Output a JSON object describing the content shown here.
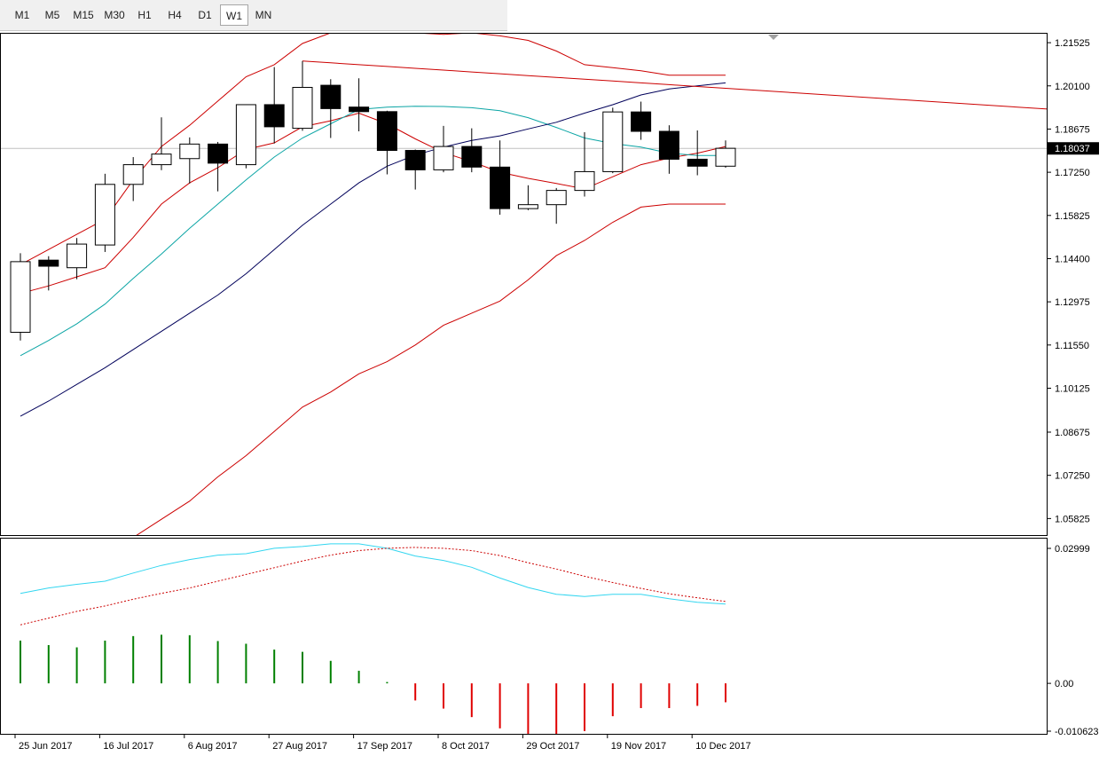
{
  "toolbar": {
    "timeframes": [
      "M1",
      "M5",
      "M15",
      "M30",
      "H1",
      "H4",
      "D1",
      "W1",
      "MN"
    ],
    "active": "W1"
  },
  "chart_data": [
    {
      "type": "candlestick",
      "symbol_timeframe": "W1",
      "x_tick_labels": [
        "25 Jun 2017",
        "16 Jul 2017",
        "6 Aug 2017",
        "27 Aug 2017",
        "17 Sep 2017",
        "8 Oct 2017",
        "29 Oct 2017",
        "19 Nov 2017",
        "10 Dec 2017"
      ],
      "y_tick_labels": [
        "1.21525",
        "1.20100",
        "1.18675",
        "1.17250",
        "1.15825",
        "1.14400",
        "1.12975",
        "1.11550",
        "1.10125",
        "1.08675",
        "1.07250",
        "1.05825"
      ],
      "ylim": [
        1.0525,
        1.2185
      ],
      "current_price": "1.18037",
      "candles": [
        {
          "open": 1.1197,
          "high": 1.1458,
          "low": 1.117,
          "close": 1.143
        },
        {
          "open": 1.1435,
          "high": 1.1448,
          "low": 1.1335,
          "close": 1.1415
        },
        {
          "open": 1.141,
          "high": 1.1508,
          "low": 1.1372,
          "close": 1.1488
        },
        {
          "open": 1.1485,
          "high": 1.172,
          "low": 1.1462,
          "close": 1.1685
        },
        {
          "open": 1.1685,
          "high": 1.1775,
          "low": 1.163,
          "close": 1.175
        },
        {
          "open": 1.175,
          "high": 1.1906,
          "low": 1.1732,
          "close": 1.1785
        },
        {
          "open": 1.177,
          "high": 1.184,
          "low": 1.1688,
          "close": 1.1818
        },
        {
          "open": 1.1818,
          "high": 1.1825,
          "low": 1.1662,
          "close": 1.1755
        },
        {
          "open": 1.175,
          "high": 1.1942,
          "low": 1.1738,
          "close": 1.1948
        },
        {
          "open": 1.1948,
          "high": 1.2072,
          "low": 1.182,
          "close": 1.1875
        },
        {
          "open": 1.187,
          "high": 1.2092,
          "low": 1.1862,
          "close": 1.2005
        },
        {
          "open": 1.2012,
          "high": 1.2032,
          "low": 1.1838,
          "close": 1.1935
        },
        {
          "open": 1.194,
          "high": 1.2035,
          "low": 1.186,
          "close": 1.1925
        },
        {
          "open": 1.1925,
          "high": 1.1928,
          "low": 1.1718,
          "close": 1.1797
        },
        {
          "open": 1.1797,
          "high": 1.18,
          "low": 1.1668,
          "close": 1.1733
        },
        {
          "open": 1.1733,
          "high": 1.1878,
          "low": 1.1725,
          "close": 1.181
        },
        {
          "open": 1.181,
          "high": 1.187,
          "low": 1.1725,
          "close": 1.1742
        },
        {
          "open": 1.1742,
          "high": 1.183,
          "low": 1.1585,
          "close": 1.1605
        },
        {
          "open": 1.1605,
          "high": 1.1682,
          "low": 1.16,
          "close": 1.1618
        },
        {
          "open": 1.1618,
          "high": 1.1673,
          "low": 1.1555,
          "close": 1.1665
        },
        {
          "open": 1.1665,
          "high": 1.1857,
          "low": 1.1645,
          "close": 1.1727
        },
        {
          "open": 1.1727,
          "high": 1.1938,
          "low": 1.1722,
          "close": 1.1924
        },
        {
          "open": 1.1924,
          "high": 1.1958,
          "low": 1.1832,
          "close": 1.186
        },
        {
          "open": 1.186,
          "high": 1.188,
          "low": 1.172,
          "close": 1.1768
        },
        {
          "open": 1.1768,
          "high": 1.1863,
          "low": 1.1715,
          "close": 1.1745
        },
        {
          "open": 1.1745,
          "high": 1.183,
          "low": 1.174,
          "close": 1.1804
        }
      ],
      "overlays": [
        {
          "color": "#cc0000",
          "values": [
            1.1325,
            1.135,
            1.138,
            1.141,
            1.151,
            1.162,
            1.169,
            1.174,
            1.18,
            1.1822,
            1.1875,
            1.1895,
            1.192,
            1.1885,
            1.1835,
            1.179,
            1.176,
            1.1725,
            1.1705,
            1.1688,
            1.167,
            1.171,
            1.175,
            1.1772,
            1.1788,
            1.181
          ]
        },
        {
          "color": "#cc0000",
          "values": [
            1.142,
            1.147,
            1.152,
            1.157,
            1.17,
            1.181,
            1.188,
            1.196,
            1.204,
            1.208,
            1.215,
            1.2185,
            1.22,
            1.2195,
            1.2185,
            1.218,
            1.2185,
            1.2175,
            1.216,
            1.2125,
            1.208,
            1.207,
            1.206,
            1.2045,
            1.2045,
            1.2045
          ]
        },
        {
          "color": "#cc0000",
          "values": [
            1.028,
            1.033,
            1.038,
            1.045,
            1.052,
            1.058,
            1.064,
            1.072,
            1.079,
            1.087,
            1.095,
            1.1,
            1.106,
            1.11,
            1.1155,
            1.122,
            1.126,
            1.13,
            1.137,
            1.145,
            1.15,
            1.156,
            1.161,
            1.162,
            1.162,
            1.162
          ]
        },
        {
          "color": "#0ba5a5",
          "values": [
            1.112,
            1.117,
            1.1225,
            1.129,
            1.1375,
            1.1455,
            1.154,
            1.162,
            1.17,
            1.1775,
            1.1838,
            1.1885,
            1.1932,
            1.194,
            1.1943,
            1.1942,
            1.1938,
            1.1928,
            1.1905,
            1.1873,
            1.1838,
            1.182,
            1.1808,
            1.1788,
            1.178,
            1.178
          ]
        },
        {
          "color": "#00005a",
          "values": [
            1.092,
            1.097,
            1.1025,
            1.108,
            1.114,
            1.12,
            1.126,
            1.132,
            1.139,
            1.147,
            1.155,
            1.162,
            1.169,
            1.1745,
            1.1782,
            1.1808,
            1.183,
            1.1845,
            1.1868,
            1.189,
            1.192,
            1.1948,
            1.198,
            1.2,
            1.201,
            1.202
          ]
        },
        {
          "color": "#cc0000",
          "values": [
            null,
            null,
            null,
            null,
            null,
            null,
            null,
            null,
            null,
            null,
            1.2092,
            1.2086,
            1.208,
            1.2074,
            1.2068,
            1.2062,
            1.2056,
            1.205,
            1.2044,
            1.2038,
            1.2032,
            1.2026,
            1.202,
            1.2014,
            1.2008,
            1.2002
          ]
        }
      ]
    },
    {
      "type": "bar",
      "y_tick_labels": [
        "0.02999",
        "0.00",
        "-0.010623"
      ],
      "ylim": [
        -0.010623,
        0.02999
      ],
      "histogram": [
        0.0095,
        0.0085,
        0.008,
        0.0095,
        0.0105,
        0.0108,
        0.0107,
        0.0094,
        0.0088,
        0.0075,
        0.007,
        0.005,
        0.0028,
        0.0003,
        -0.0038,
        -0.0056,
        -0.0075,
        -0.01,
        -0.0112,
        -0.0115,
        -0.0106,
        -0.0073,
        -0.0055,
        -0.0055,
        -0.005,
        -0.0042
      ],
      "lines": [
        {
          "color": "#33d6f0",
          "style": "solid",
          "values": [
            0.02,
            0.0212,
            0.022,
            0.0227,
            0.0245,
            0.0262,
            0.0275,
            0.0285,
            0.0288,
            0.03,
            0.0304,
            0.031,
            0.031,
            0.03,
            0.0283,
            0.0273,
            0.0258,
            0.0234,
            0.0213,
            0.0198,
            0.0193,
            0.0198,
            0.0198,
            0.0188,
            0.018,
            0.0176
          ]
        },
        {
          "color": "#cc0000",
          "style": "dotted",
          "values": [
            0.013,
            0.0145,
            0.016,
            0.0172,
            0.0187,
            0.02,
            0.0212,
            0.0227,
            0.0242,
            0.0257,
            0.0272,
            0.0285,
            0.0295,
            0.03,
            0.0302,
            0.03,
            0.0295,
            0.0284,
            0.0268,
            0.0254,
            0.0238,
            0.0224,
            0.0211,
            0.0199,
            0.019,
            0.0182
          ]
        }
      ]
    }
  ]
}
